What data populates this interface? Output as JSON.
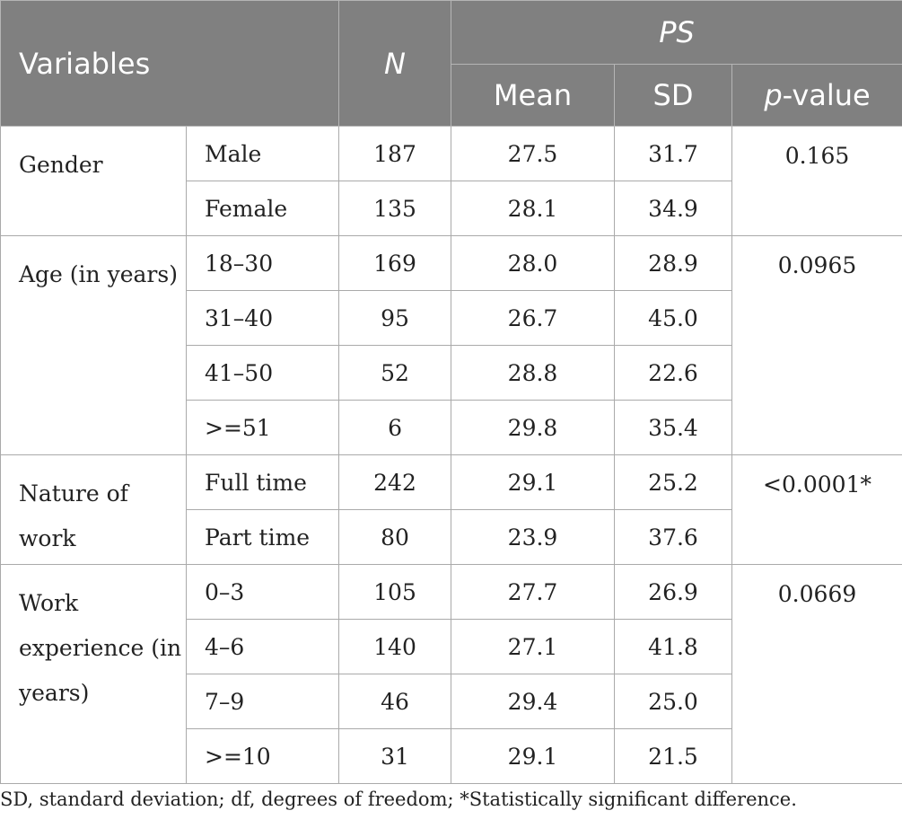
{
  "header": {
    "variables": "Variables",
    "n": "N",
    "ps": "PS",
    "mean": "Mean",
    "sd": "SD",
    "p_italic": "p",
    "p_rest": "-value"
  },
  "groups": [
    {
      "name": "Gender",
      "p": "0.165",
      "rows": [
        {
          "level": "Male",
          "n": "187",
          "mean": "27.5",
          "sd": "31.7"
        },
        {
          "level": "Female",
          "n": "135",
          "mean": "28.1",
          "sd": "34.9"
        }
      ]
    },
    {
      "name": "Age (in years)",
      "p": "0.0965",
      "rows": [
        {
          "level": "18–30",
          "n": "169",
          "mean": "28.0",
          "sd": "28.9"
        },
        {
          "level": "31–40",
          "n": "95",
          "mean": "26.7",
          "sd": "45.0"
        },
        {
          "level": "41–50",
          "n": "52",
          "mean": "28.8",
          "sd": "22.6"
        },
        {
          "level": ">=51",
          "n": "6",
          "mean": "29.8",
          "sd": "35.4"
        }
      ]
    },
    {
      "name": "Nature of work",
      "p": "<0.0001*",
      "rows": [
        {
          "level": "Full time",
          "n": "242",
          "mean": "29.1",
          "sd": "25.2"
        },
        {
          "level": "Part time",
          "n": "80",
          "mean": "23.9",
          "sd": "37.6"
        }
      ]
    },
    {
      "name": "Work experience (in years)",
      "p": "0.0669",
      "rows": [
        {
          "level": "0–3",
          "n": "105",
          "mean": "27.7",
          "sd": "26.9"
        },
        {
          "level": "4–6",
          "n": "140",
          "mean": "27.1",
          "sd": "41.8"
        },
        {
          "level": "7–9",
          "n": "46",
          "mean": "29.4",
          "sd": "25.0"
        },
        {
          "level": ">=10",
          "n": "31",
          "mean": "29.1",
          "sd": "21.5"
        }
      ]
    }
  ],
  "footnote": "SD, standard deviation; df, degrees of freedom; *Statistically significant difference."
}
